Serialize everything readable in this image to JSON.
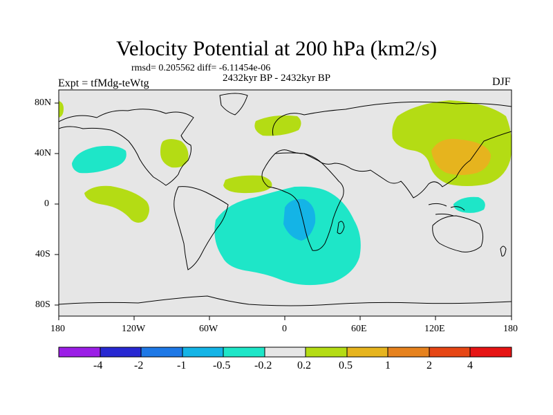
{
  "title": "Velocity Potential at 200 hPa (km2/s)",
  "stats": "rmsd= 0.205562 diff= -6.11454e-06",
  "period": "2432kyr BP - 2432kyr BP",
  "experiment": "Expt = tfMdg-teWtg",
  "season": "DJF",
  "lat_labels": [
    "80N",
    "40N",
    "0",
    "40S",
    "80S"
  ],
  "lon_labels": [
    "180",
    "120W",
    "60W",
    "0",
    "60E",
    "120E",
    "180"
  ],
  "colorbar": {
    "labels": [
      "-4",
      "-2",
      "-1",
      "-0.5",
      "-0.2",
      "0.2",
      "0.5",
      "1",
      "2",
      "4"
    ],
    "colors": [
      "#9b1ee6",
      "#2828d2",
      "#1e78e6",
      "#14b4e6",
      "#1ee6c8",
      "#e6e6e6",
      "#b4dc14",
      "#e6b41e",
      "#e6821e",
      "#e64614",
      "#e61414"
    ]
  }
}
